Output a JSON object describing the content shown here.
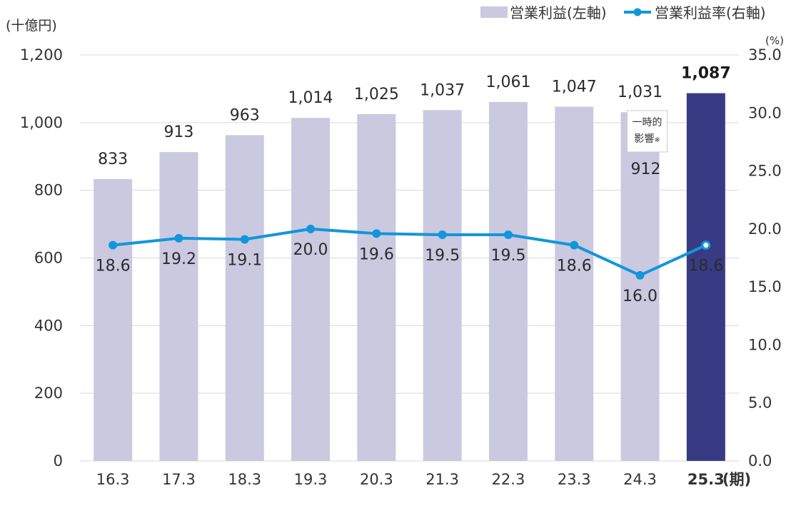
{
  "chart_data": {
    "type": "bar",
    "categories": [
      "16.3",
      "17.3",
      "18.3",
      "19.3",
      "20.3",
      "21.3",
      "22.3",
      "23.3",
      "24.3",
      "25.3"
    ],
    "x_suffix": "(期)",
    "y_left_unit": "(十億円)",
    "y_right_unit": "(%)",
    "y_left_ticks": [
      "0",
      "200",
      "400",
      "600",
      "800",
      "1,000",
      "1,200"
    ],
    "y_right_ticks": [
      "0.0",
      "5.0",
      "10.0",
      "15.0",
      "20.0",
      "25.0",
      "30.0",
      "35.0"
    ],
    "y_left_lim": [
      0,
      1200
    ],
    "y_right_lim": [
      0,
      35
    ],
    "grid": true,
    "legend_position": "top-right",
    "series": [
      {
        "name": "営業利益(左軸)",
        "type": "bar",
        "axis": "left",
        "values": [
          833,
          913,
          963,
          1014,
          1025,
          1037,
          1061,
          1047,
          1031,
          1087
        ],
        "labels": [
          "833",
          "913",
          "963",
          "1,014",
          "1,025",
          "1,037",
          "1,061",
          "1,047",
          "1,031",
          "1,087"
        ],
        "color": "#cbc9e0",
        "highlight_color": "#383b84",
        "highlight_index": 9
      },
      {
        "name": "営業利益率(右軸)",
        "type": "line",
        "axis": "right",
        "values": [
          18.6,
          19.2,
          19.1,
          20.0,
          19.6,
          19.5,
          19.5,
          18.6,
          16.0,
          18.6
        ],
        "labels": [
          "18.6",
          "19.2",
          "19.1",
          "20.0",
          "19.6",
          "19.5",
          "19.5",
          "18.6",
          "16.0",
          "18.6"
        ],
        "color": "#1296db"
      }
    ],
    "annotation": {
      "index": 8,
      "note_lines": [
        "一時的",
        "影響"
      ],
      "note_mark": "※",
      "adjusted_value": 912,
      "adjusted_label": "912"
    }
  }
}
